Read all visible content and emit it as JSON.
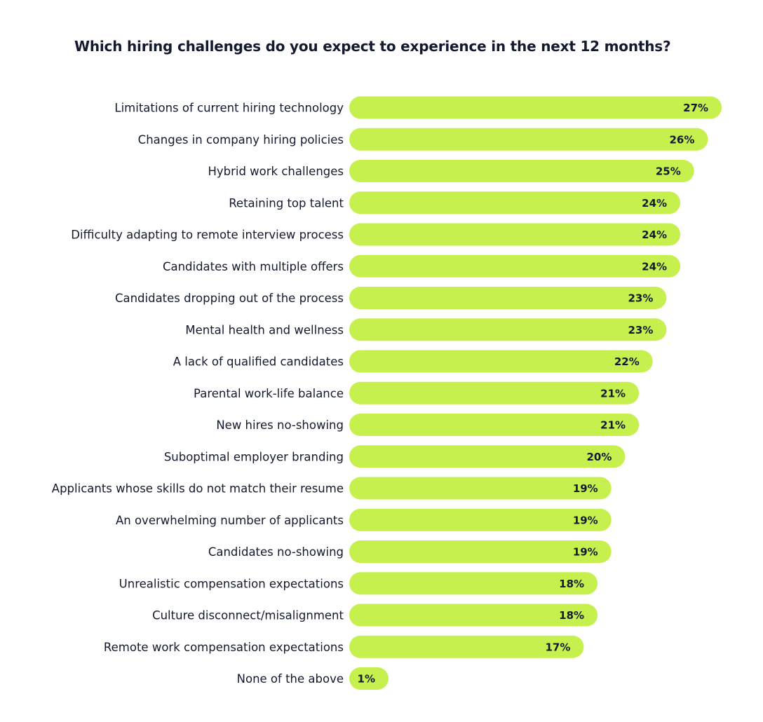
{
  "chart_data": {
    "type": "bar",
    "orientation": "horizontal",
    "title": "Which hiring challenges do you expect to experience in the next 12 months?",
    "categories": [
      "Limitations of current hiring technology",
      "Changes in company hiring policies",
      "Hybrid work challenges",
      "Retaining top talent",
      "Difficulty adapting to remote interview process",
      "Candidates with multiple offers",
      "Candidates dropping out of the process",
      "Mental health and wellness",
      "A lack of qualified candidates",
      "Parental work-life balance",
      "New hires no-showing",
      "Suboptimal employer branding",
      "Applicants whose skills do not match their resume",
      "An overwhelming number of applicants",
      "Candidates no-showing",
      "Unrealistic compensation expectations",
      "Culture disconnect/misalignment",
      "Remote work compensation expectations",
      "None of the above"
    ],
    "values": [
      27,
      26,
      25,
      24,
      24,
      24,
      23,
      23,
      22,
      21,
      21,
      20,
      19,
      19,
      19,
      18,
      18,
      17,
      1
    ],
    "value_labels": [
      "27%",
      "26%",
      "25%",
      "24%",
      "24%",
      "24%",
      "23%",
      "23%",
      "22%",
      "21%",
      "21%",
      "20%",
      "19%",
      "19%",
      "19%",
      "18%",
      "18%",
      "17%",
      "1%"
    ],
    "unit": "%",
    "bar_color": "#c6f04d",
    "text_color": "#141a2e",
    "grid": false,
    "legend": "none"
  }
}
